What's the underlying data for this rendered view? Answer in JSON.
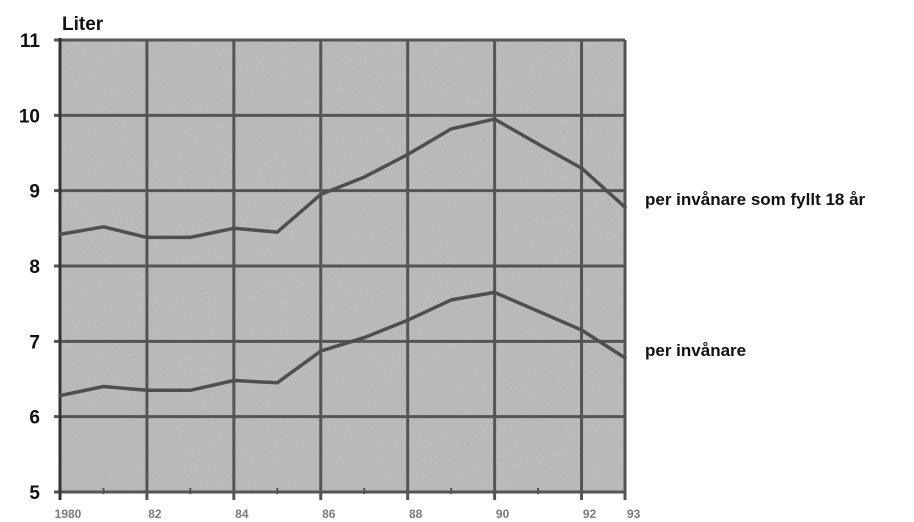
{
  "chart_data": {
    "type": "line",
    "title": "",
    "unit_label": "Liter",
    "xlabel": "",
    "ylabel": "",
    "ylim": [
      5,
      11
    ],
    "yticks": [
      5,
      6,
      7,
      8,
      9,
      10,
      11
    ],
    "x_years": [
      1980,
      1981,
      1982,
      1983,
      1984,
      1985,
      1986,
      1987,
      1988,
      1989,
      1990,
      1991,
      1992,
      1993
    ],
    "xtick_labels": [
      {
        "year": 1980,
        "label": "1980"
      },
      {
        "year": 1982,
        "label": "82"
      },
      {
        "year": 1984,
        "label": "84"
      },
      {
        "year": 1986,
        "label": "86"
      },
      {
        "year": 1988,
        "label": "88"
      },
      {
        "year": 1990,
        "label": "90"
      },
      {
        "year": 1992,
        "label": "92"
      },
      {
        "year": 1993,
        "label": "93"
      }
    ],
    "series": [
      {
        "name": "per invånare som fyllt 18 år",
        "values": [
          8.42,
          8.52,
          8.38,
          8.38,
          8.5,
          8.45,
          8.95,
          9.18,
          9.48,
          9.82,
          9.95,
          9.62,
          9.3,
          8.78
        ],
        "color": "#4f4f4f"
      },
      {
        "name": "per invånare",
        "values": [
          6.28,
          6.4,
          6.35,
          6.35,
          6.48,
          6.45,
          6.87,
          7.05,
          7.28,
          7.55,
          7.65,
          7.4,
          7.15,
          6.78
        ],
        "color": "#4f4f4f"
      }
    ],
    "grid": true,
    "legend": "right, inline labels"
  },
  "colors": {
    "plot_background": "#b9b9b9",
    "grid": "#555555",
    "line": "#4f4f4f"
  }
}
